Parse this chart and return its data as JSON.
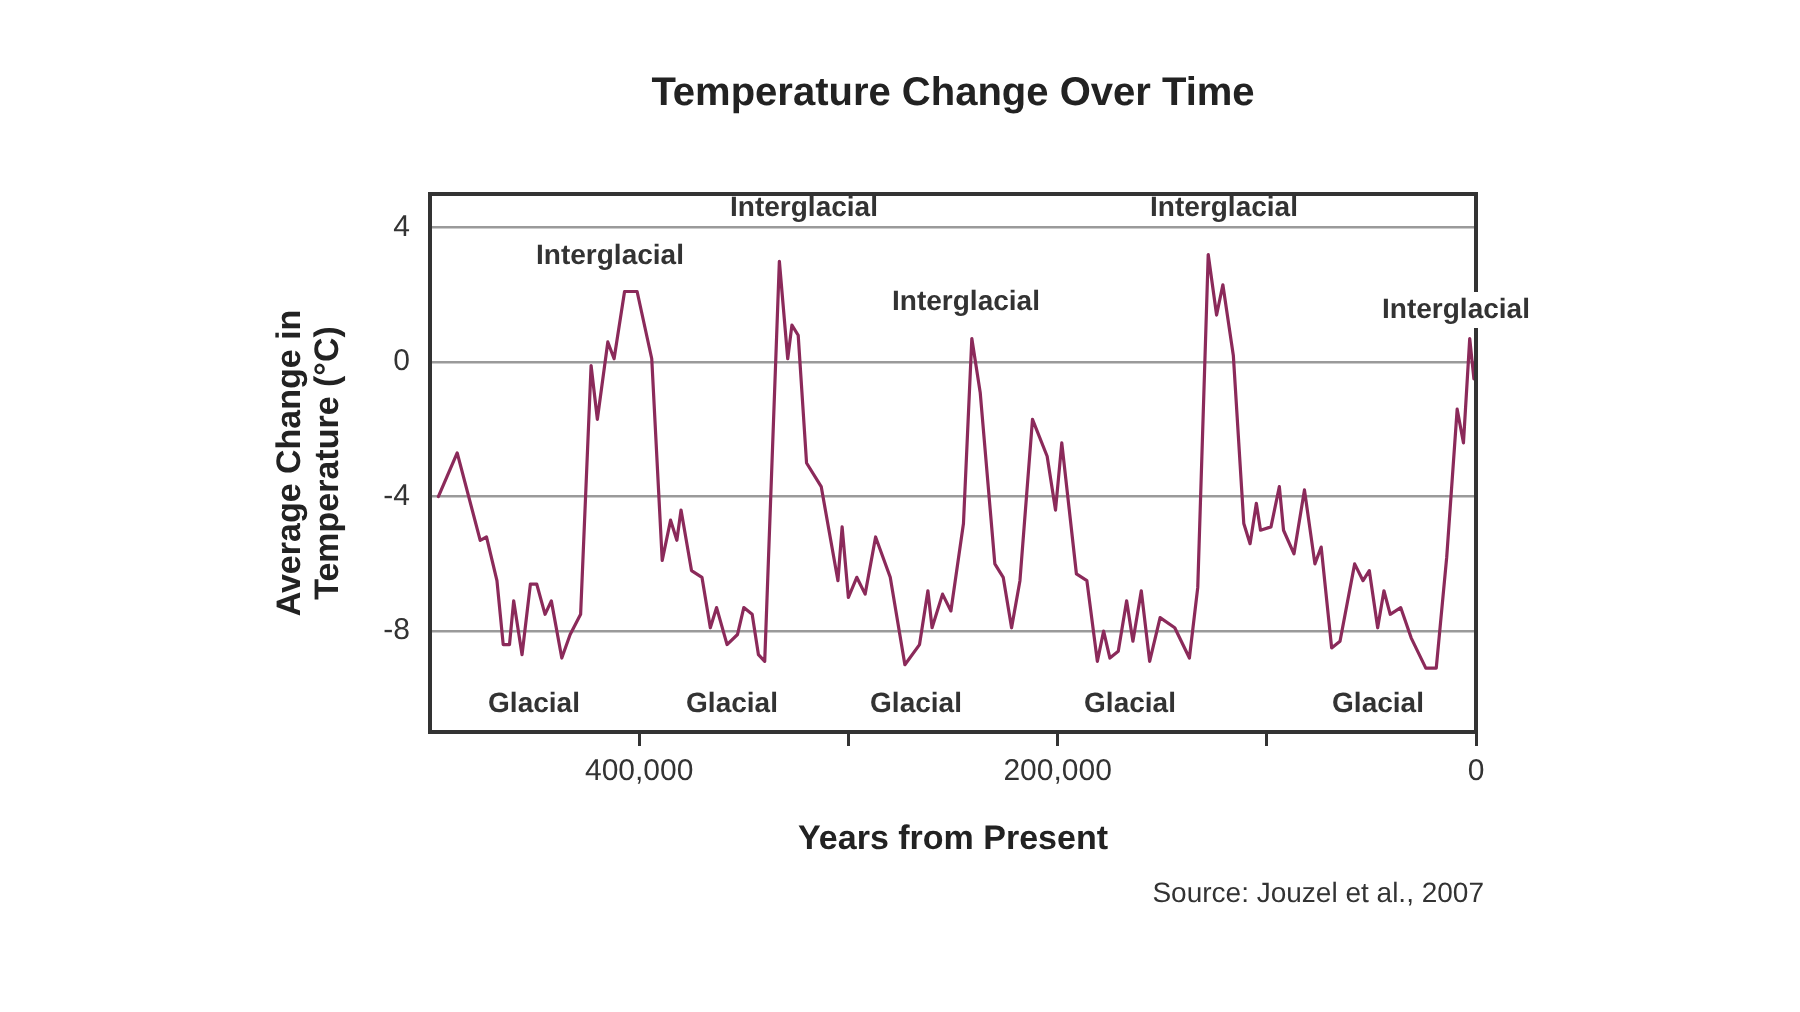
{
  "chart_data": {
    "type": "line",
    "title": "Temperature Change Over Time",
    "xlabel": "Years from Present",
    "ylabel": "Average Change in Temperature (°C)",
    "x": [
      496000,
      487000,
      476000,
      473000,
      468000,
      465000,
      462000,
      460000,
      456000,
      452000,
      449000,
      445000,
      442000,
      437000,
      433000,
      428000,
      423000,
      420000,
      415000,
      412000,
      407000,
      401000,
      394000,
      389000,
      385000,
      382000,
      380000,
      375000,
      370000,
      366000,
      363000,
      358000,
      353000,
      350000,
      346000,
      343000,
      340000,
      333000,
      329000,
      327000,
      324000,
      320000,
      313000,
      305000,
      303000,
      300000,
      296000,
      292000,
      287000,
      280000,
      273000,
      266000,
      262000,
      260000,
      255000,
      251000,
      245000,
      241000,
      237000,
      230000,
      226000,
      222000,
      218000,
      212000,
      205000,
      201000,
      198000,
      191000,
      186000,
      181000,
      178000,
      175000,
      171000,
      167000,
      164000,
      160000,
      156000,
      151000,
      144000,
      137000,
      133000,
      128000,
      124000,
      121000,
      116000,
      111000,
      108000,
      105000,
      103000,
      98000,
      94000,
      92000,
      87000,
      82000,
      77000,
      74000,
      69000,
      65000,
      58000,
      54000,
      51000,
      47000,
      44000,
      41000,
      36000,
      31000,
      24000,
      19000,
      14000,
      9000,
      6000,
      3000,
      1000,
      0
    ],
    "series": [
      {
        "color": "#8b2a5a",
        "values": [
          -4.0,
          -2.7,
          -5.3,
          -5.2,
          -6.5,
          -8.4,
          -8.4,
          -7.1,
          -8.7,
          -6.6,
          -6.6,
          -7.5,
          -7.1,
          -8.8,
          -8.1,
          -7.5,
          -0.1,
          -1.7,
          0.6,
          0.1,
          2.1,
          2.1,
          0.1,
          -5.9,
          -4.7,
          -5.3,
          -4.4,
          -6.2,
          -6.4,
          -7.9,
          -7.3,
          -8.4,
          -8.1,
          -7.3,
          -7.5,
          -8.7,
          -8.9,
          3.0,
          0.1,
          1.1,
          0.8,
          -3.0,
          -3.7,
          -6.5,
          -4.9,
          -7.0,
          -6.4,
          -6.9,
          -5.2,
          -6.4,
          -9.0,
          -8.4,
          -6.8,
          -7.9,
          -6.9,
          -7.4,
          -4.8,
          0.7,
          -0.9,
          -6.0,
          -6.4,
          -7.9,
          -6.5,
          -1.7,
          -2.8,
          -4.4,
          -2.4,
          -6.3,
          -6.5,
          -8.9,
          -8.0,
          -8.8,
          -8.6,
          -7.1,
          -8.3,
          -6.8,
          -8.9,
          -7.6,
          -7.9,
          -8.8,
          -6.7,
          3.2,
          1.4,
          2.3,
          0.2,
          -4.8,
          -5.4,
          -4.2,
          -5.0,
          -4.9,
          -3.7,
          -5.0,
          -5.7,
          -3.8,
          -6.0,
          -5.5,
          -8.5,
          -8.3,
          -6.0,
          -6.5,
          -6.2,
          -7.9,
          -6.8,
          -7.5,
          -7.3,
          -8.2,
          -9.1,
          -9.1,
          -5.8,
          -1.4,
          -2.4,
          0.7,
          -0.5,
          0.2
        ]
      }
    ],
    "xlim": [
      500000,
      0
    ],
    "xticks": [
      {
        "value": 400000,
        "label": "400,000"
      },
      {
        "value": 300000,
        "label": null
      },
      {
        "value": 200000,
        "label": "200,000"
      },
      {
        "value": 100000,
        "label": null
      },
      0
    ],
    "ylim": [
      -11,
      5
    ],
    "yticks": [
      -8,
      -4,
      0,
      4
    ],
    "grid": "y",
    "legend": false,
    "marker": "none",
    "line_style": "solid",
    "annotations": [
      "Interglacial",
      "Interglacial",
      "Interglacial",
      "Interglacial",
      "Interglacial",
      "Glacial",
      "Glacial",
      "Glacial",
      "Glacial",
      "Glacial",
      "Source: Jouzel et al., 2007"
    ]
  }
}
